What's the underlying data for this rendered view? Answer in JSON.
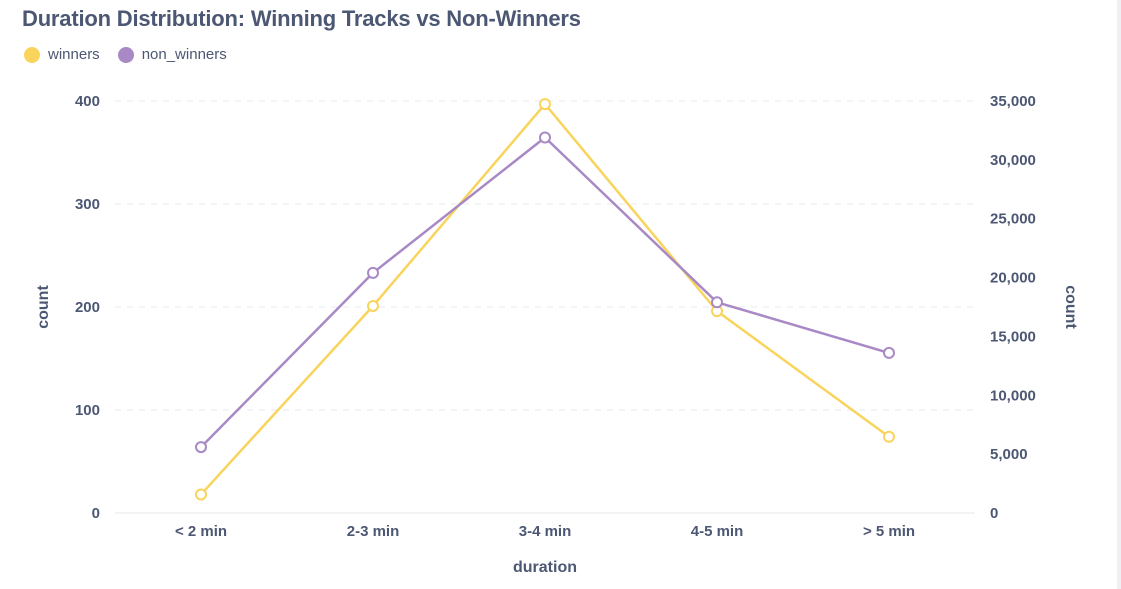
{
  "chart_data": {
    "type": "line",
    "title": "Duration Distribution: Winning Tracks vs Non-Winners",
    "xlabel": "duration",
    "ylabel_left": "count",
    "ylabel_right": "count",
    "categories": [
      "< 2 min",
      "2-3 min",
      "3-4 min",
      "4-5 min",
      "> 5 min"
    ],
    "left_axis": {
      "ylim": [
        0,
        400
      ],
      "ticks": [
        0,
        100,
        200,
        300,
        400
      ],
      "tick_labels": [
        "0",
        "100",
        "200",
        "300",
        "400"
      ]
    },
    "right_axis": {
      "ylim": [
        0,
        35000
      ],
      "ticks": [
        0,
        5000,
        10000,
        15000,
        20000,
        25000,
        30000,
        35000
      ],
      "tick_labels": [
        "0",
        "5,000",
        "10,000",
        "15,000",
        "20,000",
        "25,000",
        "30,000",
        "35,000"
      ]
    },
    "series": [
      {
        "name": "winners",
        "axis": "left",
        "color": "#f9d45c",
        "values": [
          18,
          201,
          397,
          196,
          74
        ]
      },
      {
        "name": "non_winners",
        "axis": "right",
        "color": "#a989c5",
        "values": [
          5600,
          20400,
          31900,
          17900,
          13600
        ]
      }
    ],
    "grid": true,
    "legend_position": "top-left"
  }
}
